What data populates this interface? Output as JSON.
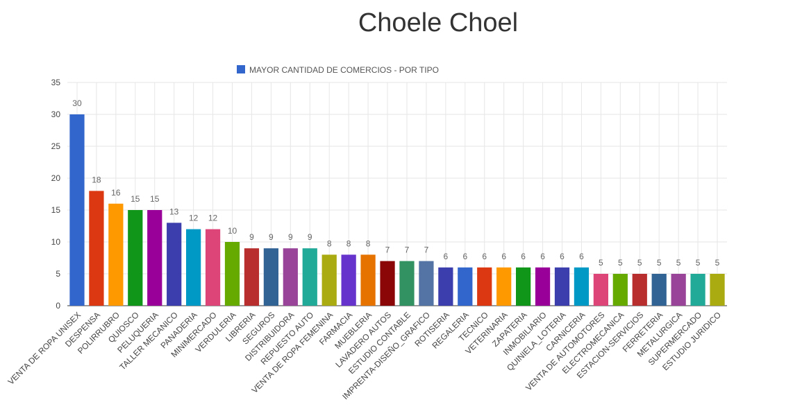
{
  "chart_data": {
    "type": "bar",
    "title": "Choele Choel",
    "xlabel": "",
    "ylabel": "",
    "ylim": [
      0,
      35
    ],
    "yticks": [
      0,
      5,
      10,
      15,
      20,
      25,
      30,
      35
    ],
    "grid": true,
    "legend": {
      "position": "top-center",
      "label": "MAYOR CANTIDAD DE COMERCIOS - POR TIPO",
      "color": "#3366cc"
    },
    "categories": [
      "VENTA DE ROPA UNISEX",
      "DESPENSA",
      "POLIRRUBRO",
      "QUIOSCO",
      "PELUQUERIA",
      "TALLER MECANICO",
      "PANADERIA",
      "MINIMERCADO",
      "VERDULERIA",
      "LIBRERIA",
      "SEGUROS",
      "DISTRIBUIDORA",
      "REPUESTO AUTO",
      "VENTA DE ROPA FEMENINA",
      "FARMACIA",
      "MUEBLERIA",
      "LAVADERO AUTOS",
      "ESTUDIO CONTABLE",
      "IMPRENTA-DISEÑO_GRAFICO",
      "ROTISERIA",
      "REGALERIA",
      "TECNICO",
      "VETERINARIA",
      "ZAPATERIA",
      "INMOBILIARIO",
      "QUINIELA_LOTERIA",
      "CARNICERIA",
      "VENTA DE AUTOMOTORES",
      "ELECTROMECANICA",
      "ESTACION-SERVICIOS",
      "FERRETERIA",
      "METALURGICA",
      "SUPERMERCADO",
      "ESTUDIO JURIDICO"
    ],
    "values": [
      30,
      18,
      16,
      15,
      15,
      13,
      12,
      12,
      10,
      9,
      9,
      9,
      9,
      8,
      8,
      8,
      7,
      7,
      7,
      6,
      6,
      6,
      6,
      6,
      6,
      6,
      6,
      5,
      5,
      5,
      5,
      5,
      5,
      5
    ],
    "colors": [
      "#3366cc",
      "#dc3912",
      "#ff9900",
      "#109618",
      "#990099",
      "#3b3eac",
      "#0099c6",
      "#dd4477",
      "#66aa00",
      "#b82e2e",
      "#316395",
      "#994499",
      "#22aa99",
      "#aaaa11",
      "#6633cc",
      "#e67300",
      "#8b0707",
      "#329262",
      "#5574a6",
      "#3b3eac",
      "#3366cc",
      "#dc3912",
      "#ff9900",
      "#109618",
      "#990099",
      "#3b3eac",
      "#0099c6",
      "#dd4477",
      "#66aa00",
      "#b82e2e",
      "#316395",
      "#994499",
      "#22aa99",
      "#aaaa11"
    ]
  }
}
